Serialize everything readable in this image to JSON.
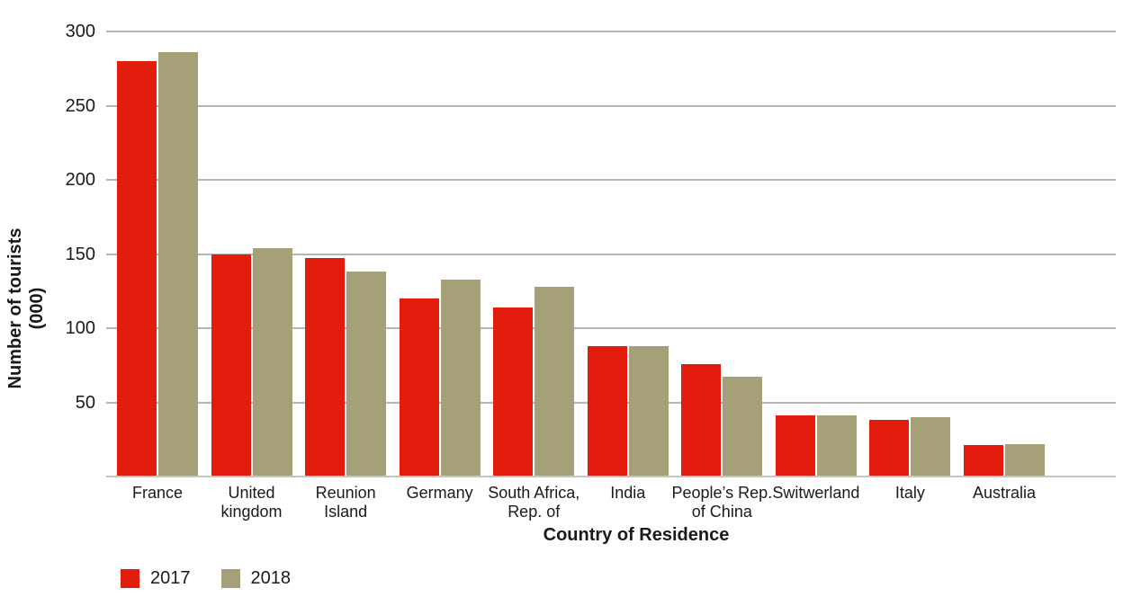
{
  "chart_data": {
    "type": "bar",
    "title": "",
    "categories": [
      "France",
      "United\nkingdom",
      "Reunion\nIsland",
      "Germany",
      "South Africa,\nRep. of",
      "India",
      "People’s Rep.\nof China",
      "Switwerland",
      "Italy",
      "Australia"
    ],
    "series": [
      {
        "name": "2017",
        "color": "#e21d0d",
        "values": [
          280,
          150,
          147,
          120,
          114,
          88,
          76,
          41,
          38,
          21
        ]
      },
      {
        "name": "2018",
        "color": "#a5a077",
        "values": [
          286,
          154,
          138,
          133,
          128,
          88,
          67,
          41,
          40,
          22
        ]
      }
    ],
    "xlabel": "Country of Residence",
    "ylabel": "Number of tourists\n(000)",
    "ylim": [
      0,
      300
    ],
    "yticks": [
      50,
      100,
      150,
      200,
      250,
      300
    ],
    "grid": true,
    "legend_position": "bottom-left",
    "gridline_color": "#b5b5b5",
    "baseline_color": "#c6c6c6",
    "text_color": "#1a1a1a"
  }
}
